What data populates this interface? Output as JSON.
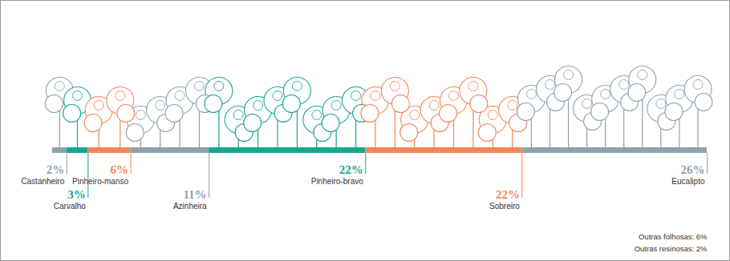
{
  "chart_data": {
    "type": "bar",
    "orientation": "horizontal",
    "stacked": true,
    "data_labels": true,
    "tick_labels": false,
    "categories": [
      "Castanheiro",
      "Carvalho",
      "Pinheiro-manso",
      "Azinheira",
      "Pinheiro-bravo",
      "Sobreiro",
      "Eucalipto"
    ],
    "values": [
      2,
      3,
      6,
      11,
      22,
      22,
      26
    ],
    "value_labels": [
      "2%",
      "3%",
      "6%",
      "11%",
      "22%",
      "22%",
      "26%"
    ],
    "colors": [
      "#8ea3ae",
      "#1aa68f",
      "#f2875a",
      "#8ea3ae",
      "#1aa68f",
      "#f2875a",
      "#8ea3ae"
    ],
    "annotations": [
      "Outras folhosas: 6%",
      "Outras resinosas: 2%"
    ]
  }
}
